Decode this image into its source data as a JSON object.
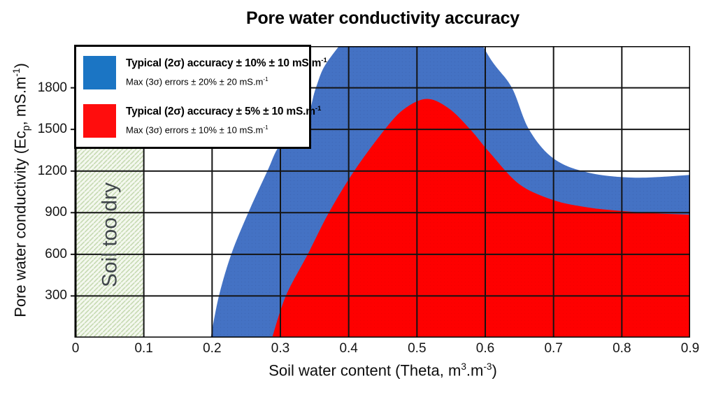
{
  "chart_data": {
    "type": "area",
    "title": "Pore water conductivity accuracy",
    "xlabel": "Soil water content (Theta, m3.m-3)",
    "ylabel": "Pore water conductivity (Ecp, mS.m-1)",
    "xlabel_parts": {
      "p1": "Soil water content (Theta, m",
      "sup1": "3",
      "p2": ".m",
      "sup2": "-3",
      "p3": ")"
    },
    "ylabel_parts": {
      "p1": "Pore water conductivity (Ec",
      "sub1": "p",
      "p2": ", mS.m",
      "sup1": "-1",
      "p3": ")"
    },
    "xlim": [
      0,
      0.9
    ],
    "ylim": [
      0,
      2100
    ],
    "grid": true,
    "grid_color": "#141414",
    "border_color": "#000000",
    "x_ticks": [
      {
        "value": 0,
        "label": "0"
      },
      {
        "value": 0.1,
        "label": "0.1"
      },
      {
        "value": 0.2,
        "label": "0.2"
      },
      {
        "value": 0.3,
        "label": "0.3"
      },
      {
        "value": 0.4,
        "label": "0.4"
      },
      {
        "value": 0.5,
        "label": "0.5"
      },
      {
        "value": 0.6,
        "label": "0.6"
      },
      {
        "value": 0.7,
        "label": "0.7"
      },
      {
        "value": 0.8,
        "label": "0.8"
      },
      {
        "value": 0.9,
        "label": "0.9"
      }
    ],
    "y_ticks": [
      {
        "value": 300,
        "label": "300"
      },
      {
        "value": 600,
        "label": "600"
      },
      {
        "value": 900,
        "label": "900"
      },
      {
        "value": 1200,
        "label": "1200"
      },
      {
        "value": 1500,
        "label": "1500"
      },
      {
        "value": 1800,
        "label": "1800"
      }
    ],
    "dry_zone": {
      "x_range": [
        0,
        0.1
      ],
      "label": "Soil too dry",
      "bg_color": "#f4f8ef",
      "hatch_color": "#c6dab2",
      "text_color": "#40464b"
    },
    "series": [
      {
        "name": "typical-2sigma-10pct-band",
        "color": "#4472C4",
        "dot_color": "#3A64AF",
        "boundary_theta_v": [
          [
            0.198,
            0
          ],
          [
            0.21,
            300
          ],
          [
            0.228,
            600
          ],
          [
            0.253,
            900
          ],
          [
            0.281,
            1200
          ],
          [
            0.3,
            1390
          ],
          [
            0.335,
            1520
          ],
          [
            0.352,
            1800
          ],
          [
            0.372,
            2010
          ],
          [
            0.43,
            2320
          ],
          [
            0.5,
            2420
          ],
          [
            0.565,
            2320
          ],
          [
            0.61,
            1990
          ],
          [
            0.639,
            1800
          ],
          [
            0.664,
            1500
          ],
          [
            0.7,
            1290
          ],
          [
            0.75,
            1190
          ],
          [
            0.82,
            1152
          ],
          [
            0.9,
            1172
          ]
        ]
      },
      {
        "name": "typical-2sigma-5pct-band",
        "color": "#FE0000",
        "dot_color": "#E00000",
        "boundary_theta_v": [
          [
            0.288,
            0
          ],
          [
            0.308,
            300
          ],
          [
            0.34,
            600
          ],
          [
            0.371,
            900
          ],
          [
            0.408,
            1200
          ],
          [
            0.453,
            1500
          ],
          [
            0.482,
            1650
          ],
          [
            0.515,
            1720
          ],
          [
            0.547,
            1650
          ],
          [
            0.578,
            1500
          ],
          [
            0.607,
            1330
          ],
          [
            0.65,
            1105
          ],
          [
            0.7,
            990
          ],
          [
            0.75,
            938
          ],
          [
            0.8,
            912
          ],
          [
            0.85,
            895
          ],
          [
            0.9,
            885
          ]
        ]
      }
    ]
  },
  "legend": {
    "items": [
      {
        "color": "#1B75C4",
        "bold_text": "Typical (2σ) accuracy ± 10% ± 10 mS.m",
        "bold_sup": "-1",
        "detail_text": "Max (3σ) errors ± 20% ± 20 mS.m",
        "detail_sup": "-1"
      },
      {
        "color": "#FF0D0D",
        "bold_text": "Typical (2σ) accuracy ± 5% ± 10 mS.m",
        "bold_sup": "-1",
        "detail_text": "Max (3σ) errors ± 10% ± 10 mS.m",
        "detail_sup": "-1"
      }
    ]
  }
}
